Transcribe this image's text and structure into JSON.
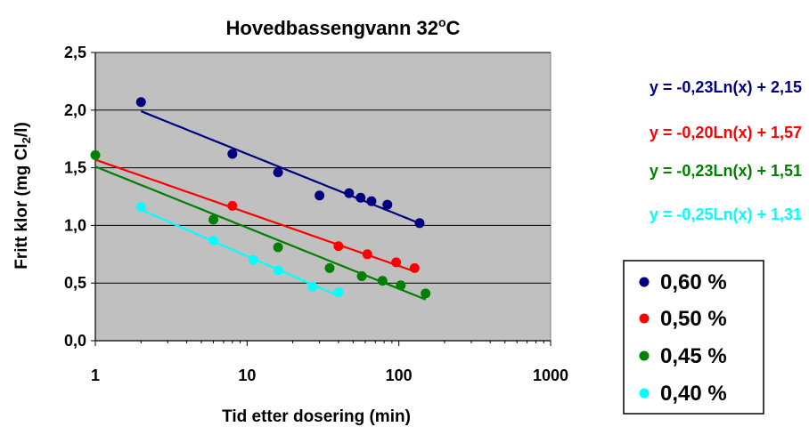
{
  "chart_data": {
    "type": "scatter",
    "title": "Hovedbassengvann  32",
    "title_unit": "C",
    "title_degree": "o",
    "xlabel": "Tid etter dosering (min)",
    "ylabel": "Fritt klor (mg Cl",
    "ylabel_sub": "2",
    "ylabel_end": "/l)",
    "x_scale": "log",
    "xlim": [
      1,
      1000
    ],
    "ylim": [
      0,
      2.5
    ],
    "x_ticks": [
      1,
      10,
      100,
      1000
    ],
    "x_tick_labels": [
      "1",
      "10",
      "100",
      "1000"
    ],
    "y_ticks": [
      0,
      0.5,
      1.0,
      1.5,
      2.0,
      2.5
    ],
    "y_tick_labels": [
      "0,0",
      "0,5",
      "1,0",
      "1,5",
      "2,0",
      "2,5"
    ],
    "grid": "horizontal",
    "plot_background": "#c0c0c0",
    "legend_position": "right",
    "series": [
      {
        "name": "0,60 %",
        "color": "#000080",
        "x": [
          2,
          8,
          16,
          30,
          47,
          56,
          66,
          84,
          137
        ],
        "y": [
          2.07,
          1.62,
          1.46,
          1.26,
          1.28,
          1.24,
          1.21,
          1.18,
          1.02
        ],
        "trendline": {
          "a": -0.23,
          "b": 2.15,
          "x_range": [
            2,
            137
          ]
        },
        "equation": "y = -0,23Ln(x) + 2,15"
      },
      {
        "name": "0,50 %",
        "color": "#ff0000",
        "x": [
          8,
          40,
          62,
          96,
          127
        ],
        "y": [
          1.17,
          0.82,
          0.75,
          0.68,
          0.63
        ],
        "trendline": {
          "a": -0.2,
          "b": 1.57,
          "x_range": [
            1,
            127
          ]
        },
        "equation": "y = -0,20Ln(x) + 1,57"
      },
      {
        "name": "0,45 %",
        "color": "#008000",
        "x": [
          1,
          6,
          16,
          35,
          57,
          78,
          103,
          150
        ],
        "y": [
          1.61,
          1.05,
          0.81,
          0.63,
          0.56,
          0.52,
          0.48,
          0.41
        ],
        "trendline": {
          "a": -0.23,
          "b": 1.51,
          "x_range": [
            1,
            150
          ]
        },
        "equation": "y = -0,23Ln(x) + 1,51"
      },
      {
        "name": "0,40 %",
        "color": "#00ffff",
        "x": [
          2,
          6,
          11,
          16,
          27,
          40
        ],
        "y": [
          1.16,
          0.87,
          0.7,
          0.61,
          0.47,
          0.42
        ],
        "trendline": {
          "a": -0.25,
          "b": 1.31,
          "x_range": [
            2,
            40
          ]
        },
        "equation": "y = -0,25Ln(x) + 1,31"
      }
    ]
  }
}
